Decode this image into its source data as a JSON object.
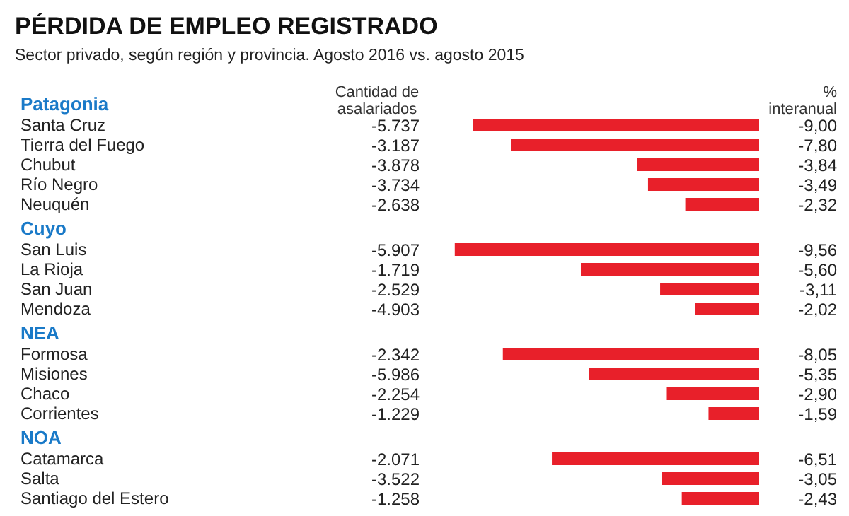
{
  "chart_data": {
    "type": "bar",
    "orientation": "horizontal",
    "title": "PÉRDIDA DE EMPLEO REGISTRADO",
    "subtitle": "Sector privado, según región y provincia. Agosto 2016 vs. agosto 2015",
    "xlabel": "% interanual",
    "categories": [
      "Patagonia",
      "Santa Cruz",
      "Tierra del Fuego",
      "Chubut",
      "Río Negro",
      "Neuquén",
      "Cuyo",
      "San Luis",
      "La Rioja",
      "San Juan",
      "Mendoza",
      "NEA",
      "Formosa",
      "Misiones",
      "Chaco",
      "Corrientes",
      "NOA",
      "Catamarca",
      "Salta",
      "Santiago del Estero"
    ],
    "values": [
      null,
      -9.0,
      -7.8,
      -3.84,
      -3.49,
      -2.32,
      null,
      -9.56,
      -5.6,
      -3.11,
      -2.02,
      null,
      -8.05,
      -5.35,
      -2.9,
      -1.59,
      null,
      -6.51,
      -3.05,
      -2.43
    ],
    "value_labels": [
      null,
      "-9,00",
      "-7,80",
      "-3,84",
      "-3,49",
      "-2,32",
      null,
      "-9,56",
      "-5,60",
      "-3,11",
      "-2,02",
      null,
      "-8,05",
      "-5,35",
      "-2,90",
      "-1,59",
      null,
      "-6,51",
      "-3,05",
      "-2,43"
    ],
    "color": "#e8202a",
    "annotations": [
      "Cantidad de asalariados",
      "-5.737",
      "-3.187",
      "-3.878",
      "-3.734",
      "-2.638",
      "-5.907",
      "-1.719",
      "-2.529",
      "-4.903",
      "-2.342",
      "-5.986",
      "-2.254",
      "-1.229",
      "-2.071",
      "-3.522",
      "-1.258"
    ]
  }
}
